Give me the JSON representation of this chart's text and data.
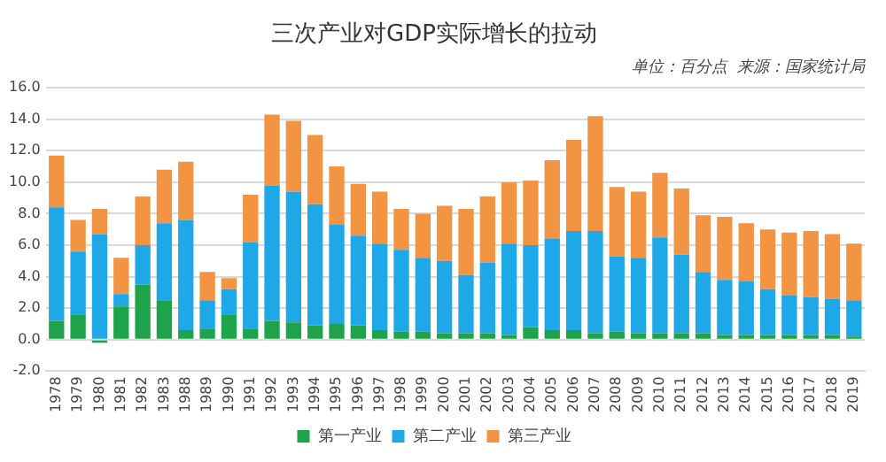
{
  "chart_data": {
    "type": "bar",
    "title": "三次产业对GDP实际增长的拉动",
    "annotations": [
      "单位：百分点  来源：国家统计局"
    ],
    "categories": [
      "1978",
      "1979",
      "1980",
      "1981",
      "1982",
      "1983",
      "1988",
      "1989",
      "1990",
      "1991",
      "1992",
      "1993",
      "1994",
      "1995",
      "1996",
      "1997",
      "1998",
      "1999",
      "2000",
      "2001",
      "2002",
      "2003",
      "2004",
      "2005",
      "2006",
      "2007",
      "2008",
      "2009",
      "2010",
      "2011",
      "2012",
      "2013",
      "2014",
      "2015",
      "2016",
      "2017",
      "2018",
      "2019"
    ],
    "stacked": true,
    "series": [
      {
        "name": "第一产业",
        "color": "#1ea34a",
        "values": [
          1.2,
          1.6,
          -0.2,
          2.1,
          3.5,
          2.5,
          0.6,
          0.7,
          1.6,
          0.7,
          1.2,
          1.1,
          0.9,
          1.0,
          0.9,
          0.6,
          0.5,
          0.5,
          0.4,
          0.4,
          0.4,
          0.3,
          0.8,
          0.6,
          0.6,
          0.4,
          0.5,
          0.4,
          0.4,
          0.4,
          0.4,
          0.3,
          0.3,
          0.3,
          0.3,
          0.3,
          0.3,
          0.2
        ]
      },
      {
        "name": "第二产业",
        "color": "#1ea8e8",
        "values": [
          7.2,
          4.0,
          6.7,
          0.8,
          2.5,
          4.9,
          7.0,
          1.8,
          1.6,
          5.5,
          8.6,
          8.3,
          7.7,
          6.3,
          5.7,
          5.5,
          5.2,
          4.7,
          4.6,
          3.7,
          4.5,
          5.8,
          5.2,
          5.8,
          6.3,
          6.5,
          4.8,
          4.8,
          6.1,
          5.0,
          3.9,
          3.5,
          3.4,
          2.9,
          2.5,
          2.4,
          2.3,
          2.3
        ]
      },
      {
        "name": "第三产业",
        "color": "#f29441",
        "values": [
          3.3,
          2.0,
          1.6,
          2.3,
          3.1,
          3.4,
          3.7,
          1.8,
          0.7,
          3.0,
          4.5,
          4.5,
          4.4,
          3.7,
          3.3,
          3.3,
          2.6,
          2.8,
          3.5,
          4.2,
          4.2,
          3.9,
          4.1,
          5.0,
          5.8,
          7.3,
          4.4,
          4.2,
          4.1,
          4.2,
          3.6,
          4.0,
          3.7,
          3.8,
          4.0,
          4.2,
          4.1,
          3.6
        ]
      }
    ],
    "ylim": [
      -2,
      16
    ],
    "yticks": [
      {
        "value": -2,
        "label": "-2.0"
      },
      {
        "value": 0,
        "label": "0.0"
      },
      {
        "value": 2,
        "label": "2.0"
      },
      {
        "value": 4,
        "label": "4.0"
      },
      {
        "value": 6,
        "label": "6.0"
      },
      {
        "value": 8,
        "label": "8.0"
      },
      {
        "value": 10,
        "label": "10.0"
      },
      {
        "value": 12,
        "label": "12.0"
      },
      {
        "value": 14,
        "label": "14.0"
      },
      {
        "value": 16,
        "label": "16.0"
      }
    ],
    "grid": "y",
    "legend": "bottom"
  }
}
